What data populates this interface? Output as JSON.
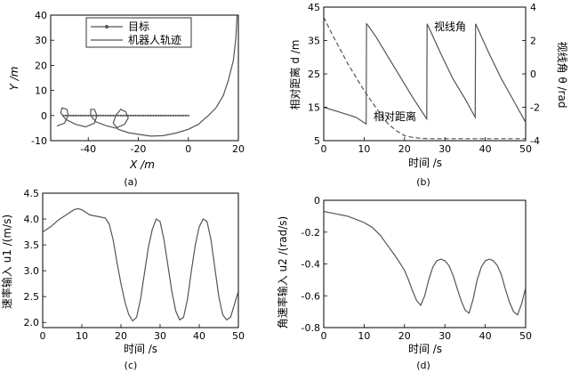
{
  "chart_data": [
    {
      "panel": "(a)",
      "type": "line",
      "xlabel": "X /m",
      "ylabel": "Y /m",
      "xlim": [
        -55,
        20
      ],
      "ylim": [
        -10,
        40
      ],
      "xticks": [
        -40,
        -20,
        0,
        20
      ],
      "yticks": [
        -10,
        0,
        10,
        20,
        30,
        40
      ],
      "legend_position": "top-center",
      "series": [
        {
          "name": "目标",
          "style": "line-with-dots",
          "x": [
            -50,
            -45,
            -40,
            -35,
            -30,
            -25,
            -20,
            -15,
            -10,
            -5,
            0
          ],
          "y": [
            0,
            0,
            0,
            0,
            0,
            0,
            0,
            0,
            0,
            0,
            0
          ]
        },
        {
          "name": "机器人轨迹",
          "style": "solid",
          "x": [
            19.5,
            19,
            18,
            16,
            14,
            11,
            8,
            4,
            0,
            -5,
            -10,
            -15,
            -20,
            -24,
            -28,
            -30,
            -29,
            -27,
            -25,
            -24,
            -25.5,
            -29,
            -33,
            -37,
            -39,
            -39,
            -37.5,
            -36.5,
            -37.5,
            -41,
            -45,
            -49,
            -51,
            -50.5,
            -48.5,
            -48,
            -49.5,
            -52.5
          ],
          "y": [
            40,
            31,
            22,
            14,
            8,
            3,
            0,
            -3.5,
            -5.5,
            -7,
            -8,
            -8.2,
            -7.5,
            -6.8,
            -5.5,
            -3,
            0,
            2.5,
            1.5,
            -1,
            -3.5,
            -5,
            -4,
            -2.5,
            0,
            2.5,
            2.5,
            0,
            -3,
            -4.5,
            -3.5,
            -1.5,
            1,
            3,
            2.5,
            0,
            -3,
            -4.2
          ]
        }
      ]
    },
    {
      "panel": "(b)",
      "type": "line",
      "xlabel": "时间 /s",
      "ylabel_left": "相对距离 d /m",
      "ylabel_right": "视线角 θ /rad",
      "xlim": [
        0,
        50
      ],
      "ylim_left": [
        5,
        45
      ],
      "ylim_right": [
        -4,
        4
      ],
      "xticks": [
        0,
        10,
        20,
        30,
        40,
        50
      ],
      "yticks_left": [
        5,
        15,
        25,
        35,
        45
      ],
      "yticks_right": [
        -4,
        -2,
        0,
        2,
        4
      ],
      "annotations": [
        "视线角",
        "相对距离"
      ],
      "series": [
        {
          "name": "相对距离",
          "axis": "left",
          "style": "dashed",
          "x": [
            0,
            2,
            4,
            6,
            8,
            10,
            12,
            14,
            16,
            18,
            20,
            22,
            24,
            27,
            30,
            35,
            40,
            45,
            50
          ],
          "y": [
            42,
            37,
            32.5,
            28,
            24,
            20,
            16.5,
            13,
            10,
            8,
            6.5,
            6,
            5.7,
            5.6,
            5.6,
            5.6,
            5.6,
            5.6,
            5.6
          ]
        },
        {
          "name": "视线角",
          "axis": "right",
          "style": "solid",
          "x": [
            0,
            4,
            8,
            10.5,
            10.6,
            11,
            13,
            16,
            19,
            22,
            25.5,
            25.6,
            26,
            29,
            32,
            35,
            37.5,
            37.6,
            38,
            41,
            44,
            47,
            50
          ],
          "y": [
            -2.0,
            -2.3,
            -2.6,
            -3.0,
            3.0,
            2.9,
            2.2,
            1.0,
            -0.2,
            -1.4,
            -2.7,
            3.0,
            2.8,
            1.2,
            -0.3,
            -1.5,
            -2.6,
            3.0,
            2.8,
            1.2,
            -0.3,
            -1.6,
            -2.9
          ]
        }
      ]
    },
    {
      "panel": "(c)",
      "type": "line",
      "xlabel": "时间 /s",
      "ylabel": "速率输入 u1 /(m/s)",
      "xlim": [
        0,
        50
      ],
      "ylim": [
        1.9,
        4.5
      ],
      "xticks": [
        0,
        10,
        20,
        30,
        40,
        50
      ],
      "yticks": [
        2.0,
        2.5,
        3.0,
        3.5,
        4.0,
        4.5
      ],
      "series": [
        {
          "name": "u1",
          "style": "solid",
          "x": [
            0,
            2,
            4,
            6,
            8,
            9,
            10,
            12,
            14,
            16,
            17,
            18,
            19,
            20,
            21,
            22,
            23,
            24,
            25,
            26,
            27,
            28,
            29,
            30,
            31,
            32,
            33,
            34,
            35,
            36,
            37,
            38,
            39,
            40,
            41,
            42,
            43,
            44,
            45,
            46,
            47,
            48,
            49,
            50
          ],
          "y": [
            3.75,
            3.85,
            3.98,
            4.08,
            4.18,
            4.2,
            4.18,
            4.08,
            4.05,
            4.02,
            3.9,
            3.6,
            3.15,
            2.75,
            2.4,
            2.15,
            2.03,
            2.1,
            2.45,
            2.95,
            3.45,
            3.8,
            4.0,
            3.95,
            3.6,
            3.1,
            2.6,
            2.22,
            2.05,
            2.1,
            2.45,
            3.0,
            3.5,
            3.85,
            4.0,
            3.95,
            3.6,
            3.05,
            2.5,
            2.15,
            2.05,
            2.1,
            2.35,
            2.6
          ]
        }
      ]
    },
    {
      "panel": "(d)",
      "type": "line",
      "xlabel": "时间 /s",
      "ylabel": "角速率输入 u2 /(rad/s)",
      "xlim": [
        0,
        50
      ],
      "ylim": [
        -0.8,
        0
      ],
      "xticks": [
        0,
        10,
        20,
        30,
        40,
        50
      ],
      "yticks": [
        -0.8,
        -0.6,
        -0.4,
        -0.2,
        0
      ],
      "series": [
        {
          "name": "u2",
          "style": "solid",
          "x": [
            0,
            2,
            4,
            6,
            8,
            10,
            12,
            14,
            16,
            18,
            20,
            21,
            22,
            23,
            24,
            25,
            26,
            27,
            28,
            29,
            30,
            31,
            32,
            33,
            34,
            35,
            36,
            37,
            38,
            39,
            40,
            41,
            42,
            43,
            44,
            45,
            46,
            47,
            48,
            49,
            50
          ],
          "y": [
            -0.07,
            -0.08,
            -0.09,
            -0.1,
            -0.12,
            -0.14,
            -0.17,
            -0.22,
            -0.29,
            -0.36,
            -0.44,
            -0.5,
            -0.57,
            -0.63,
            -0.66,
            -0.6,
            -0.5,
            -0.42,
            -0.38,
            -0.37,
            -0.38,
            -0.41,
            -0.47,
            -0.55,
            -0.63,
            -0.69,
            -0.71,
            -0.62,
            -0.5,
            -0.42,
            -0.38,
            -0.37,
            -0.38,
            -0.41,
            -0.47,
            -0.56,
            -0.64,
            -0.7,
            -0.72,
            -0.65,
            -0.55
          ]
        }
      ]
    }
  ],
  "panel_labels": [
    "(a)",
    "(b)",
    "(c)",
    "(d)"
  ],
  "colors": {
    "line": "#555555",
    "axis": "#000000",
    "background": "#ffffff"
  }
}
